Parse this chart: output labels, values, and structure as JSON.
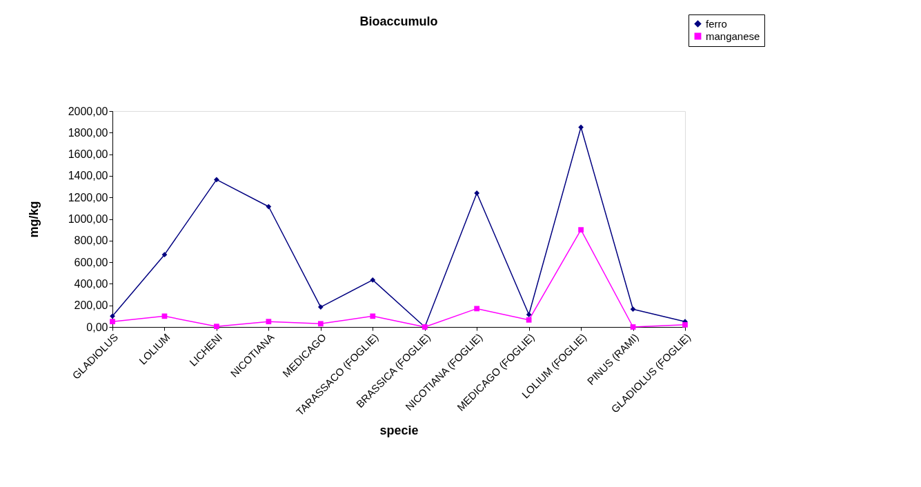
{
  "chart_data": {
    "type": "line",
    "title": "Bioaccumulo",
    "xlabel": "specie",
    "ylabel": "mg/kg",
    "categories": [
      "GLADIOLUS",
      "LOLIUM",
      "LICHENI",
      "NICOTIANA",
      "MEDICAGO",
      "TARASSACO (FOGLIE)",
      "BRASSICA (FOGLIE)",
      "NICOTIANA (FOGLIE)",
      "MEDICAGO (FOGLIE)",
      "LOLIUM (FOGLIE)",
      "PINUS (RAMI)",
      "GLADIOLUS (FOGLIE)"
    ],
    "series": [
      {
        "name": "ferro",
        "color": "#000080",
        "marker": "diamond",
        "values": [
          100,
          670,
          1365,
          1115,
          185,
          435,
          0,
          1240,
          115,
          1850,
          165,
          50
        ]
      },
      {
        "name": "manganese",
        "color": "#ff00ff",
        "marker": "square",
        "values": [
          50,
          100,
          5,
          50,
          30,
          100,
          0,
          170,
          65,
          900,
          0,
          20
        ]
      }
    ],
    "ylim": [
      0,
      2000
    ],
    "yticks": [
      {
        "value": 0,
        "label": "0,00"
      },
      {
        "value": 200,
        "label": "200,00"
      },
      {
        "value": 400,
        "label": "400,00"
      },
      {
        "value": 600,
        "label": "600,00"
      },
      {
        "value": 800,
        "label": "800,00"
      },
      {
        "value": 1000,
        "label": "1000,00"
      },
      {
        "value": 1200,
        "label": "1200,00"
      },
      {
        "value": 1400,
        "label": "1400,00"
      },
      {
        "value": 1600,
        "label": "1600,00"
      },
      {
        "value": 1800,
        "label": "1800,00"
      },
      {
        "value": 2000,
        "label": "2000,00"
      }
    ],
    "grid": false,
    "legend": "top right",
    "line_style": "solid"
  }
}
